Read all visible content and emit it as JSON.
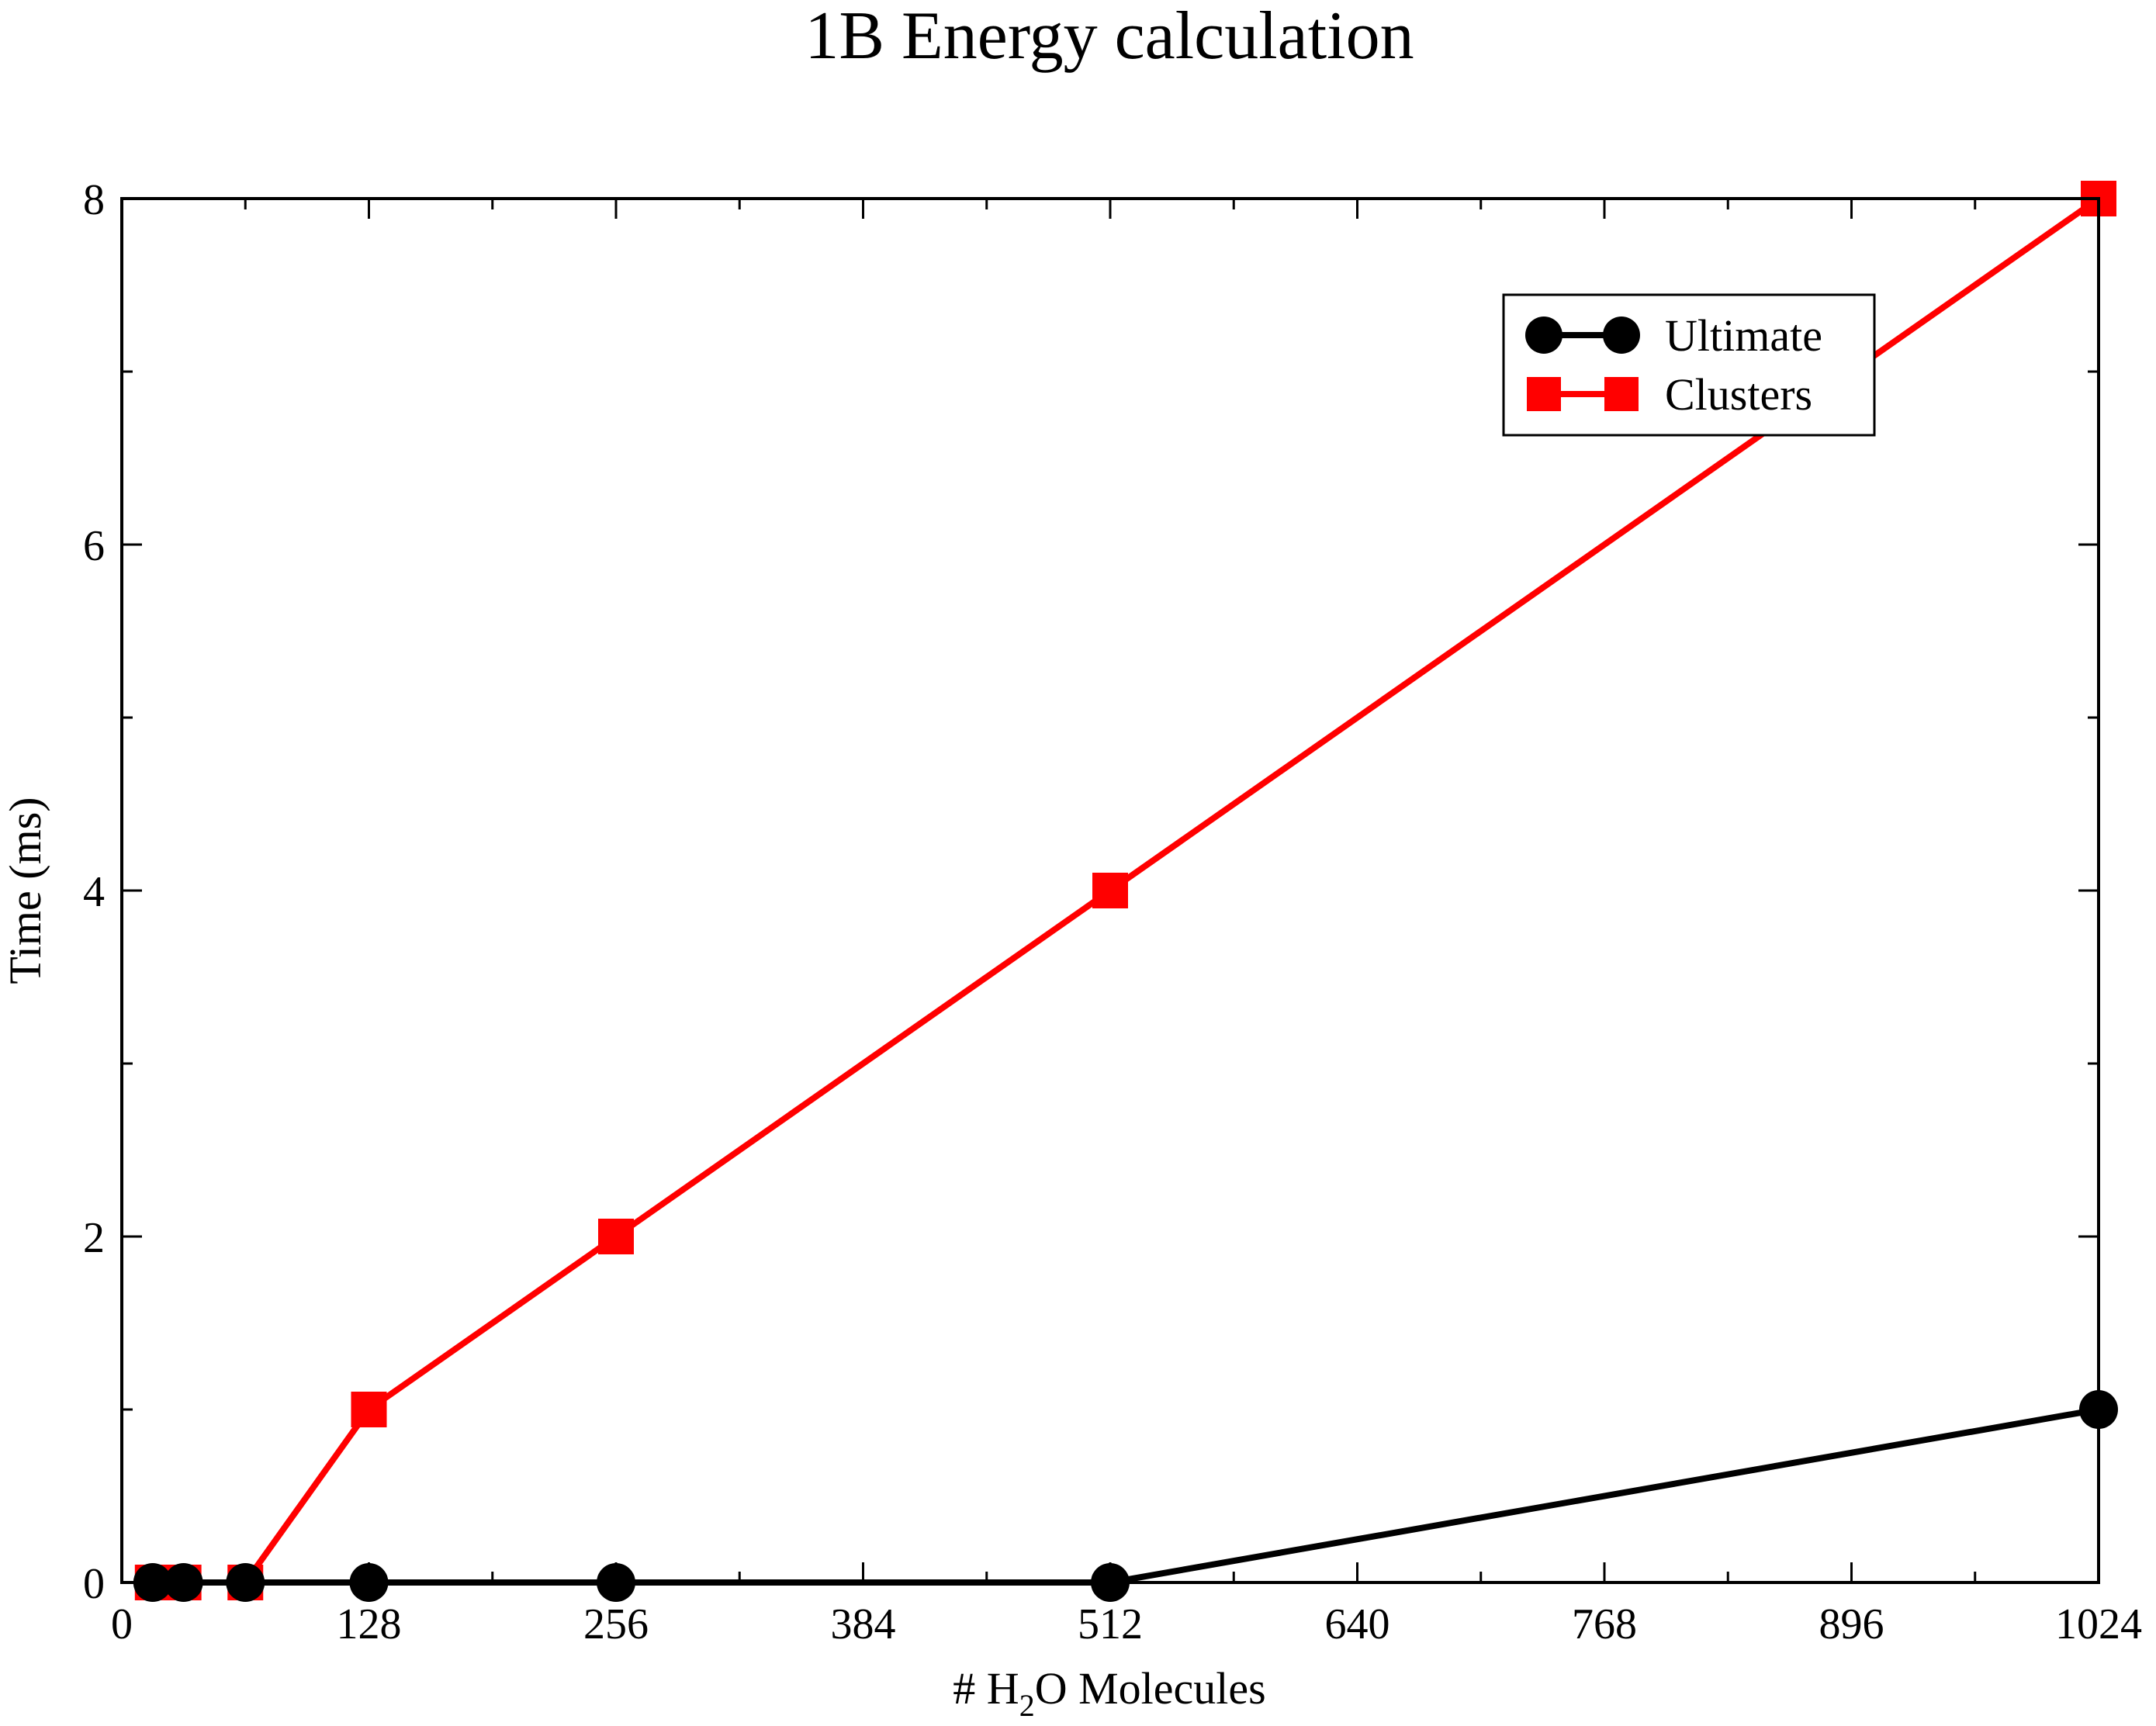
{
  "chart_data": {
    "type": "line",
    "title": "1B Energy calculation",
    "xlabel_parts": {
      "pre": "# H",
      "sub": "2",
      "post": "O Molecules"
    },
    "ylabel": "Time (ms)",
    "xlim": [
      0,
      1024
    ],
    "ylim": [
      0,
      8
    ],
    "x_ticks": [
      0,
      128,
      256,
      384,
      512,
      640,
      768,
      896,
      1024
    ],
    "x_tick_labels": [
      "0",
      "128",
      "256",
      "384",
      "512",
      "640",
      "768",
      "896",
      "1024"
    ],
    "y_ticks": [
      0,
      2,
      4,
      6,
      8
    ],
    "y_tick_labels": [
      "0",
      "2",
      "4",
      "6",
      "8"
    ],
    "grid": false,
    "legend_position": "top-right",
    "series": [
      {
        "name": "Ultimate",
        "color": "#000000",
        "marker": "circle",
        "x": [
          16,
          32,
          64,
          128,
          256,
          512,
          1024
        ],
        "y": [
          0,
          0,
          0,
          0,
          0,
          0,
          1
        ]
      },
      {
        "name": "Clusters",
        "color": "#ff0000",
        "marker": "square",
        "x": [
          16,
          32,
          64,
          128,
          256,
          512,
          1024
        ],
        "y": [
          0,
          0,
          0,
          1,
          2,
          4,
          8
        ]
      }
    ]
  }
}
